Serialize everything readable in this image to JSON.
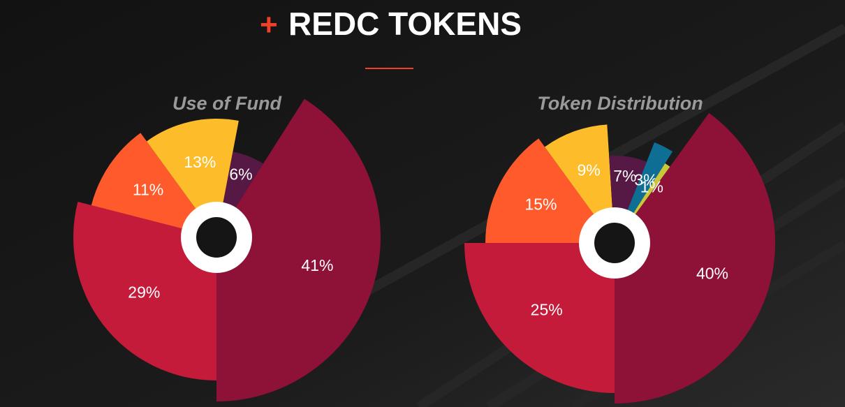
{
  "header": {
    "title": "REDC TOKENS"
  },
  "chart_data": [
    {
      "type": "pie",
      "title": "Use of Fund",
      "values": [
        41,
        29,
        11,
        13,
        6
      ],
      "value_labels": [
        "41%",
        "29%",
        "11%",
        "13%",
        "6%"
      ],
      "colors": [
        "#8e1238",
        "#c41b3a",
        "#ff5a2b",
        "#fdbd2b",
        "#561845"
      ]
    },
    {
      "type": "pie",
      "title": "Token Distribution",
      "values": [
        40,
        25,
        15,
        9,
        7,
        3,
        1
      ],
      "value_labels": [
        "40%",
        "25%",
        "15%",
        "9%",
        "7%",
        "3%",
        "1%"
      ],
      "colors": [
        "#8e1238",
        "#c41b3a",
        "#ff5a2b",
        "#fdbd2b",
        "#561845",
        "#0f6e94",
        "#c9c83a"
      ]
    }
  ]
}
